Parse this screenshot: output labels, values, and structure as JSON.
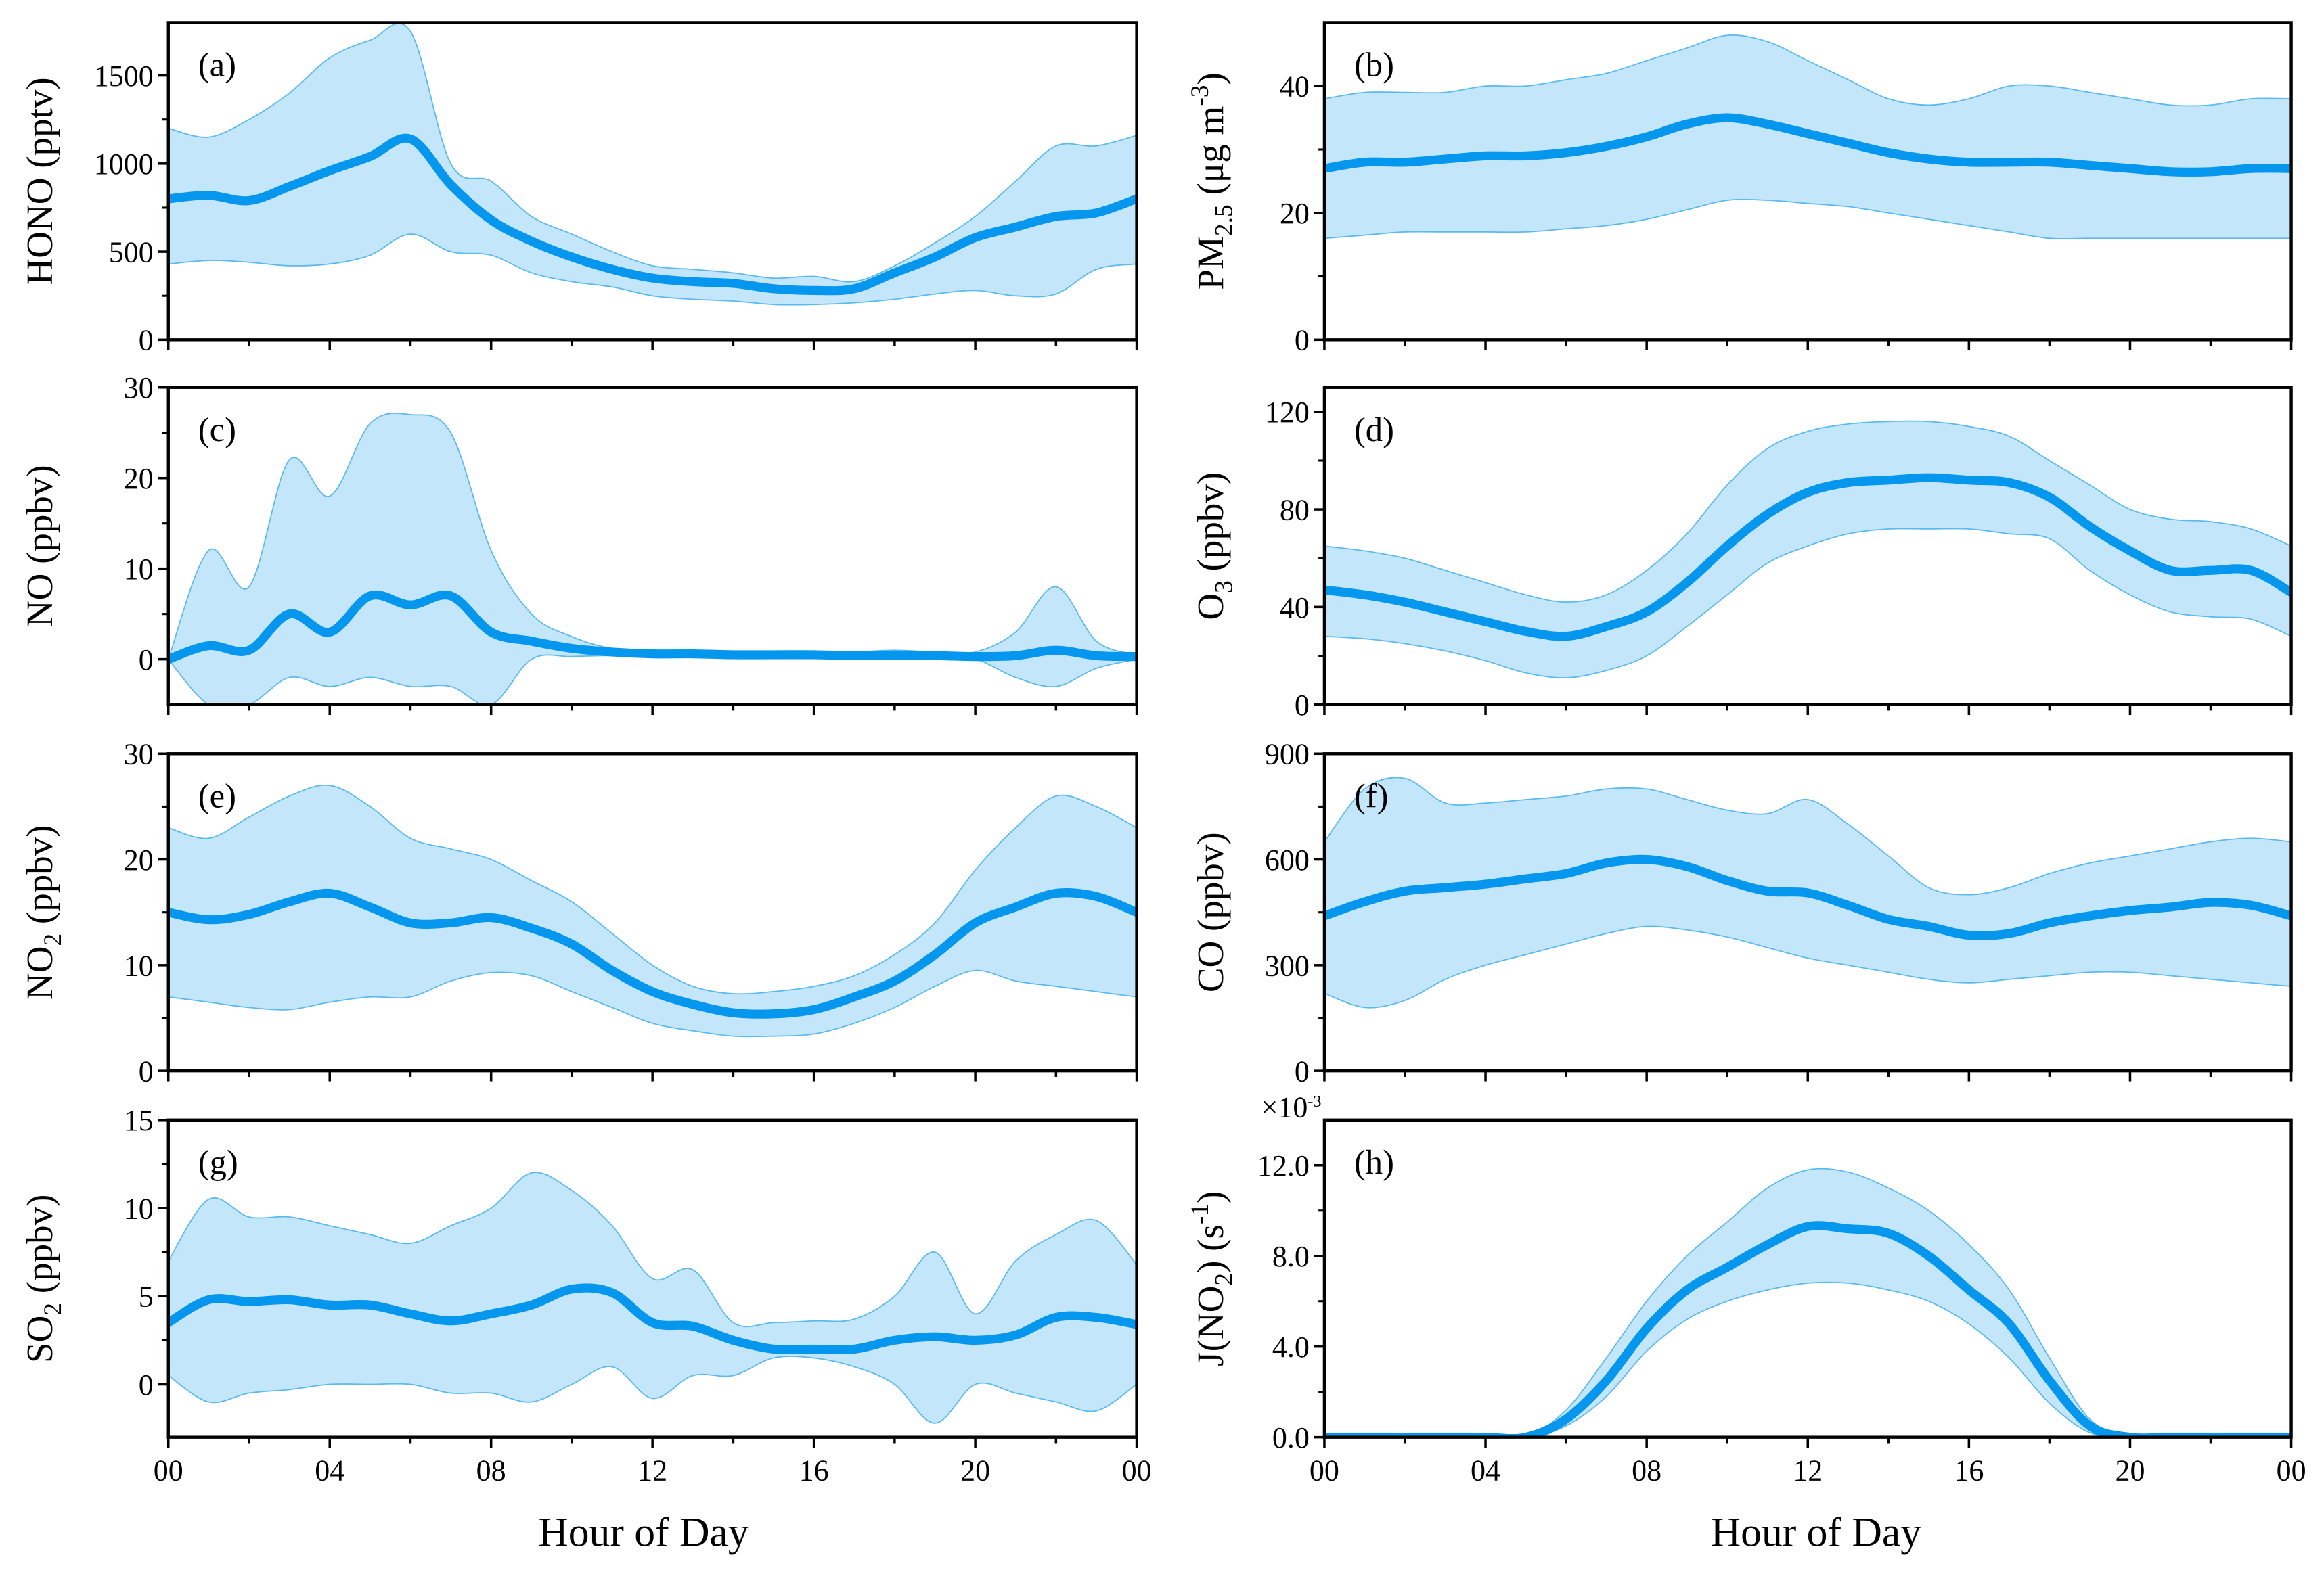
{
  "chart_data": [
    {
      "id": "a",
      "type": "area",
      "panel_label": "(a)",
      "ylabel": [
        {
          "t": "HONO (pptv)"
        }
      ],
      "ylim": [
        0,
        1800
      ],
      "yticks": [
        {
          "v": 0,
          "l": "0"
        },
        {
          "v": 500,
          "l": "500"
        },
        {
          "v": 1000,
          "l": "1000"
        },
        {
          "v": 1500,
          "l": "1500"
        }
      ],
      "x": [
        0,
        1,
        2,
        3,
        4,
        5,
        6,
        7,
        8,
        9,
        10,
        11,
        12,
        13,
        14,
        15,
        16,
        17,
        18,
        19,
        20,
        21,
        22,
        23,
        24
      ],
      "mean": [
        800,
        820,
        790,
        870,
        960,
        1040,
        1140,
        880,
        680,
        560,
        470,
        400,
        350,
        330,
        320,
        290,
        280,
        290,
        380,
        470,
        580,
        640,
        700,
        720,
        800
      ],
      "upper": [
        1200,
        1150,
        1250,
        1400,
        1600,
        1700,
        1750,
        1000,
        900,
        700,
        600,
        500,
        420,
        400,
        380,
        350,
        360,
        330,
        420,
        550,
        700,
        900,
        1100,
        1100,
        1160
      ],
      "lower": [
        430,
        450,
        440,
        420,
        430,
        480,
        600,
        500,
        480,
        380,
        330,
        300,
        250,
        230,
        220,
        200,
        200,
        210,
        230,
        260,
        280,
        250,
        260,
        400,
        430
      ]
    },
    {
      "id": "b",
      "type": "area",
      "panel_label": "(b)",
      "ylabel": [
        {
          "t": "PM"
        },
        {
          "t": "2.5",
          "s": "sub"
        },
        {
          "t": " (μg m"
        },
        {
          "t": "-3",
          "s": "sup"
        },
        {
          "t": ")"
        }
      ],
      "ylim": [
        0,
        50
      ],
      "yticks": [
        {
          "v": 0,
          "l": "0"
        },
        {
          "v": 20,
          "l": "20"
        },
        {
          "v": 40,
          "l": "40"
        }
      ],
      "x": [
        0,
        1,
        2,
        3,
        4,
        5,
        6,
        7,
        8,
        9,
        10,
        11,
        12,
        13,
        14,
        15,
        16,
        17,
        18,
        19,
        20,
        21,
        22,
        23,
        24
      ],
      "mean": [
        27,
        28,
        28,
        28.5,
        29,
        29,
        29.5,
        30.5,
        32,
        34,
        35,
        34,
        32.5,
        31,
        29.5,
        28.5,
        28,
        28,
        28,
        27.5,
        27,
        26.5,
        26.5,
        27,
        27
      ],
      "upper": [
        38,
        39,
        39,
        39,
        40,
        40,
        41,
        42,
        44,
        46,
        48,
        47,
        44,
        41,
        38,
        37,
        38,
        40,
        40,
        39,
        38,
        37,
        37,
        38,
        38
      ],
      "lower": [
        16,
        16.5,
        17,
        17,
        17,
        17,
        17.5,
        18,
        19,
        20.5,
        22,
        22,
        21.5,
        21,
        20,
        19,
        18,
        17,
        16,
        16,
        16,
        16,
        16,
        16,
        16
      ]
    },
    {
      "id": "c",
      "type": "area",
      "panel_label": "(c)",
      "ylabel": [
        {
          "t": "NO (ppbv)"
        }
      ],
      "ylim": [
        -5,
        30
      ],
      "yticks": [
        {
          "v": 0,
          "l": "0"
        },
        {
          "v": 10,
          "l": "10"
        },
        {
          "v": 20,
          "l": "20"
        },
        {
          "v": 30,
          "l": "30"
        }
      ],
      "x": [
        0,
        1,
        2,
        3,
        4,
        5,
        6,
        7,
        8,
        9,
        10,
        11,
        12,
        13,
        14,
        15,
        16,
        17,
        18,
        19,
        20,
        21,
        22,
        23,
        24
      ],
      "mean": [
        0,
        1.5,
        1,
        5,
        3,
        7,
        6,
        7,
        3,
        2,
        1.2,
        0.8,
        0.6,
        0.6,
        0.5,
        0.5,
        0.5,
        0.4,
        0.4,
        0.4,
        0.3,
        0.4,
        1,
        0.4,
        0.3
      ],
      "upper": [
        0,
        12,
        8,
        22,
        18,
        26,
        27,
        25,
        12,
        5,
        2.5,
        1.2,
        1,
        1,
        0.8,
        0.8,
        0.8,
        0.8,
        1,
        0.8,
        0.8,
        3,
        8,
        2,
        0.5
      ],
      "lower": [
        0,
        -5,
        -5,
        -2,
        -3,
        -2,
        -3,
        -3,
        -5,
        0,
        0.3,
        0.4,
        0.3,
        0.3,
        0.3,
        0.3,
        0.2,
        0.1,
        0,
        0.1,
        0,
        -2,
        -3,
        -1,
        0
      ]
    },
    {
      "id": "d",
      "type": "area",
      "panel_label": "(d)",
      "ylabel": [
        {
          "t": "O"
        },
        {
          "t": "3",
          "s": "sub"
        },
        {
          "t": " (ppbv)"
        }
      ],
      "ylim": [
        0,
        130
      ],
      "yticks": [
        {
          "v": 0,
          "l": "0"
        },
        {
          "v": 40,
          "l": "40"
        },
        {
          "v": 80,
          "l": "80"
        },
        {
          "v": 120,
          "l": "120"
        }
      ],
      "x": [
        0,
        1,
        2,
        3,
        4,
        5,
        6,
        7,
        8,
        9,
        10,
        11,
        12,
        13,
        14,
        15,
        16,
        17,
        18,
        19,
        20,
        21,
        22,
        23,
        24
      ],
      "mean": [
        47,
        45,
        42,
        38,
        34,
        30,
        28,
        32,
        38,
        50,
        65,
        78,
        87,
        91,
        92,
        93,
        92,
        91,
        85,
        73,
        63,
        55,
        55,
        55,
        46
      ],
      "upper": [
        65,
        63,
        60,
        55,
        50,
        45,
        42,
        45,
        55,
        70,
        90,
        105,
        112,
        115,
        116,
        116,
        114,
        110,
        100,
        90,
        80,
        76,
        75,
        72,
        65
      ],
      "lower": [
        28,
        27,
        25,
        22,
        18,
        13,
        11,
        14,
        20,
        32,
        45,
        58,
        65,
        70,
        72,
        72,
        72,
        70,
        68,
        55,
        45,
        38,
        36,
        35,
        28
      ]
    },
    {
      "id": "e",
      "type": "area",
      "panel_label": "(e)",
      "ylabel": [
        {
          "t": "NO"
        },
        {
          "t": "2",
          "s": "sub"
        },
        {
          "t": " (ppbv)"
        }
      ],
      "ylim": [
        0,
        30
      ],
      "yticks": [
        {
          "v": 0,
          "l": "0"
        },
        {
          "v": 10,
          "l": "10"
        },
        {
          "v": 20,
          "l": "20"
        },
        {
          "v": 30,
          "l": "30"
        }
      ],
      "x": [
        0,
        1,
        2,
        3,
        4,
        5,
        6,
        7,
        8,
        9,
        10,
        11,
        12,
        13,
        14,
        15,
        16,
        17,
        18,
        19,
        20,
        21,
        22,
        23,
        24
      ],
      "mean": [
        15,
        14.3,
        14.8,
        16,
        16.8,
        15.5,
        14,
        14,
        14.5,
        13.5,
        12,
        9.5,
        7.5,
        6.3,
        5.5,
        5.4,
        5.8,
        7,
        8.5,
        11,
        14,
        15.5,
        16.8,
        16.5,
        15
      ],
      "upper": [
        23,
        22,
        24,
        26,
        27,
        25,
        22,
        21,
        20,
        18,
        16,
        13,
        10,
        8,
        7.3,
        7.5,
        8,
        9,
        11,
        14,
        19,
        23,
        26,
        25,
        23
      ],
      "lower": [
        7,
        6.5,
        6,
        5.8,
        6.5,
        7,
        7,
        8.5,
        9.3,
        9,
        7.5,
        6,
        4.5,
        3.8,
        3.3,
        3.3,
        3.5,
        4.5,
        6,
        8,
        9.5,
        8.5,
        8,
        7.5,
        7
      ]
    },
    {
      "id": "f",
      "type": "area",
      "panel_label": "(f)",
      "ylabel": [
        {
          "t": "CO (ppbv)"
        }
      ],
      "ylim": [
        0,
        900
      ],
      "yticks": [
        {
          "v": 0,
          "l": "0"
        },
        {
          "v": 300,
          "l": "300"
        },
        {
          "v": 600,
          "l": "600"
        },
        {
          "v": 900,
          "l": "900"
        }
      ],
      "x": [
        0,
        1,
        2,
        3,
        4,
        5,
        6,
        7,
        8,
        9,
        10,
        11,
        12,
        13,
        14,
        15,
        16,
        17,
        18,
        19,
        20,
        21,
        22,
        23,
        24
      ],
      "mean": [
        440,
        480,
        510,
        520,
        530,
        545,
        560,
        590,
        600,
        580,
        540,
        510,
        505,
        470,
        430,
        410,
        385,
        390,
        420,
        440,
        455,
        465,
        478,
        470,
        440
      ],
      "upper": [
        650,
        800,
        830,
        760,
        760,
        770,
        780,
        800,
        800,
        770,
        740,
        730,
        770,
        700,
        610,
        520,
        500,
        520,
        560,
        590,
        610,
        630,
        650,
        660,
        650
      ],
      "lower": [
        220,
        180,
        200,
        260,
        300,
        330,
        360,
        390,
        410,
        400,
        380,
        350,
        320,
        300,
        280,
        260,
        250,
        260,
        270,
        280,
        280,
        270,
        260,
        250,
        240
      ]
    },
    {
      "id": "g",
      "type": "area",
      "panel_label": "(g)",
      "ylabel": [
        {
          "t": "SO"
        },
        {
          "t": "2",
          "s": "sub"
        },
        {
          "t": " (ppbv)"
        }
      ],
      "ylim": [
        -3,
        15
      ],
      "yticks": [
        {
          "v": 0,
          "l": "0"
        },
        {
          "v": 5,
          "l": "5"
        },
        {
          "v": 10,
          "l": "10"
        },
        {
          "v": 15,
          "l": "15"
        }
      ],
      "x": [
        0,
        1,
        2,
        3,
        4,
        5,
        6,
        7,
        8,
        9,
        10,
        11,
        12,
        13,
        14,
        15,
        16,
        17,
        18,
        19,
        20,
        21,
        22,
        23,
        24
      ],
      "mean": [
        3.5,
        4.8,
        4.7,
        4.8,
        4.5,
        4.5,
        4,
        3.6,
        4,
        4.5,
        5.4,
        5.2,
        3.5,
        3.3,
        2.5,
        2,
        2,
        2,
        2.5,
        2.7,
        2.5,
        2.8,
        3.8,
        3.8,
        3.4
      ],
      "upper": [
        7,
        10.5,
        9.5,
        9.5,
        9,
        8.5,
        8,
        9,
        10,
        12,
        11,
        9,
        6,
        6.5,
        3.5,
        3.5,
        3.6,
        3.7,
        5,
        7.5,
        4,
        7,
        8.5,
        9.3,
        6.8
      ],
      "lower": [
        0.5,
        -1,
        -0.5,
        -0.3,
        0,
        0,
        0,
        -0.5,
        -0.5,
        -1,
        0,
        1,
        -0.8,
        0.5,
        0.5,
        1.5,
        1.5,
        1,
        0,
        -2.2,
        0,
        -0.5,
        -1,
        -1.5,
        0
      ]
    },
    {
      "id": "h",
      "type": "area",
      "panel_label": "(h)",
      "ylabel": [
        {
          "t": "J(NO"
        },
        {
          "t": "2",
          "s": "sub"
        },
        {
          "t": ") (s"
        },
        {
          "t": "-1",
          "s": "sup"
        },
        {
          "t": ")"
        }
      ],
      "ylim": [
        0,
        14
      ],
      "multiplier": "×10",
      "multiplier_exp": "-3",
      "yticks": [
        {
          "v": 0,
          "l": "0.0"
        },
        {
          "v": 4,
          "l": "4.0"
        },
        {
          "v": 8,
          "l": "8.0"
        },
        {
          "v": 12,
          "l": "12.0"
        }
      ],
      "x": [
        0,
        1,
        2,
        3,
        4,
        5,
        6,
        7,
        8,
        9,
        10,
        11,
        12,
        13,
        14,
        15,
        16,
        17,
        18,
        19,
        20,
        21,
        22,
        23,
        24
      ],
      "mean": [
        0,
        0,
        0,
        0,
        0,
        0,
        0.8,
        2.5,
        4.8,
        6.5,
        7.5,
        8.5,
        9.3,
        9.2,
        9,
        8,
        6.5,
        5,
        2.5,
        0.5,
        0,
        0,
        0,
        0,
        0
      ],
      "upper": [
        0,
        0,
        0,
        0,
        0,
        0,
        1.2,
        3.5,
        6,
        8,
        9.5,
        11,
        11.8,
        11.7,
        11,
        10,
        8.5,
        6.5,
        3.5,
        0.8,
        0,
        0,
        0,
        0,
        0
      ],
      "lower": [
        0,
        0,
        0,
        0,
        0,
        0,
        0.5,
        1.8,
        3.8,
        5.2,
        6,
        6.5,
        6.8,
        6.8,
        6.5,
        6,
        5,
        3.5,
        1.5,
        0.2,
        0,
        0,
        0,
        0,
        0
      ]
    }
  ],
  "xaxis": {
    "label": "Hour of Day",
    "xlim": [
      0,
      24
    ],
    "ticks": [
      {
        "v": 0,
        "l": "00"
      },
      {
        "v": 4,
        "l": "04"
      },
      {
        "v": 8,
        "l": "08"
      },
      {
        "v": 12,
        "l": "12"
      },
      {
        "v": 16,
        "l": "16"
      },
      {
        "v": 20,
        "l": "20"
      },
      {
        "v": 24,
        "l": "00"
      }
    ]
  },
  "colors": {
    "mean": "#0596ee",
    "band": "#c3e6fb",
    "band_edge": "#5ab9ef"
  }
}
